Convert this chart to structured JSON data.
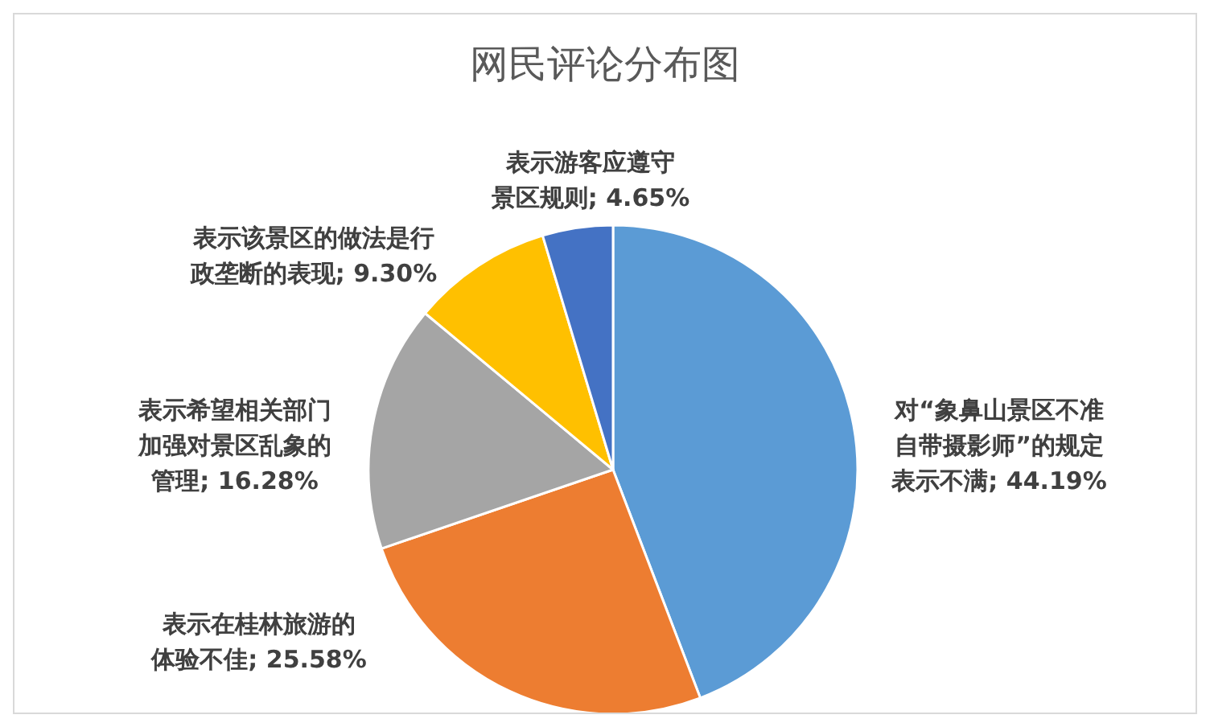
{
  "chart_data": {
    "type": "pie",
    "title": "网民评论分布图",
    "categories": [
      "对“象鼻山景区不准自带摄影师”的规定表示不满",
      "表示在桂林旅游的体验不佳",
      "表示希望相关部门加强对景区乱象的管理",
      "表示该景区的做法是行政垄断的表现",
      "表示游客应遵守景区规则"
    ],
    "values": [
      44.19,
      25.58,
      16.28,
      9.3,
      4.65
    ],
    "colors": [
      "#5b9bd5",
      "#ed7d31",
      "#a5a5a5",
      "#ffc000",
      "#4472c4"
    ],
    "value_labels": [
      "44.19%",
      "25.58%",
      "16.28%",
      "9.30%",
      "4.65%"
    ],
    "legend": false
  }
}
